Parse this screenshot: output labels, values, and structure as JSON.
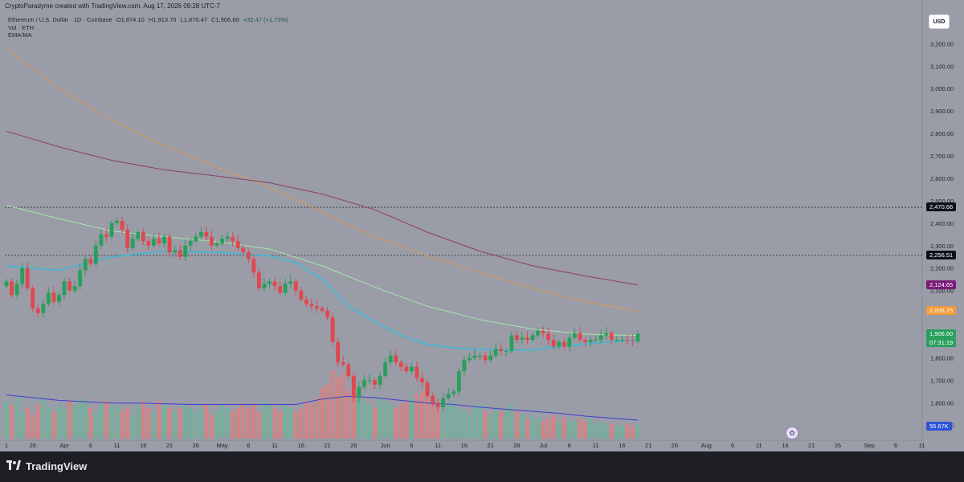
{
  "header": {
    "created_line": "CryptoParadyme created with TradingView.com, Aug 17, 2026 09:28 UTC-7",
    "symbol_line": "Ethereum / U.S. Dollar · 1D · Coinbase",
    "open": "O1,874.10",
    "high": "H1,913.70",
    "low": "L1,870.47",
    "close": "C1,906.60",
    "change": "+32.47 (+1.73%)",
    "vol_label": "Vol · ETH",
    "ema_label": "EMA/MA"
  },
  "currency_button": "USD",
  "colors": {
    "background": "#9a9ca7",
    "up": "#26a05a",
    "down": "#e0484e",
    "ema_short": "#3fb8d6",
    "ema_mid": "#a8e8b0",
    "ma_long": "#8c4060",
    "ma_orange": "#d89a5c",
    "volume_ma": "#3e3ed0"
  },
  "price_tags": [
    {
      "label": "2,470.66",
      "price": 2470.66,
      "bg": "#0e1017",
      "fg": "#ffffff",
      "dashed": true
    },
    {
      "label": "2,256.51",
      "price": 2256.51,
      "bg": "#0e1017",
      "fg": "#ffffff",
      "dashed": true
    },
    {
      "label": "2,124.65",
      "price": 2124.65,
      "bg": "#7a1b7a",
      "fg": "#ffffff",
      "dashed": false
    },
    {
      "label": "2,008.25",
      "price": 2008.25,
      "bg": "#f29b3c",
      "fg": "#ffffff",
      "dashed": false
    },
    {
      "label": "1,906.60",
      "price": 1906.6,
      "bg": "#2aa05c",
      "fg": "#ffffff",
      "dashed": false
    }
  ],
  "countdown": "07:31:19",
  "volume_tag": "55.67K",
  "footer": {
    "brand": "TradingView"
  },
  "chart_data": {
    "type": "candlestick",
    "y_axis": {
      "ticks": [
        "3,200.00",
        "3,100.00",
        "3,000.00",
        "2,900.00",
        "2,800.00",
        "2,700.00",
        "2,600.00",
        "2,500.00",
        "2,400.00",
        "2,300.00",
        "2,200.00",
        "2,100.00",
        "1,800.00",
        "1,700.00",
        "1,600.00",
        "1,500.00"
      ],
      "tick_values": [
        3200,
        3100,
        3000,
        2900,
        2800,
        2700,
        2600,
        2500,
        2400,
        2300,
        2200,
        2100,
        1800,
        1700,
        1600,
        1500
      ],
      "range": [
        1440,
        3280
      ]
    },
    "x_axis": {
      "ticks": [
        "1",
        "26",
        "Apr",
        "6",
        "11",
        "16",
        "21",
        "26",
        "May",
        "6",
        "11",
        "16",
        "21",
        "26",
        "Jun",
        "6",
        "11",
        "16",
        "21",
        "26",
        "Jul",
        "6",
        "11",
        "16",
        "21",
        "26",
        "Aug",
        "6",
        "11",
        "16",
        "21",
        "26",
        "Sep",
        "6",
        "11"
      ],
      "tick_days": [
        0,
        5,
        11,
        16,
        21,
        26,
        31,
        36,
        41,
        46,
        51,
        56,
        61,
        66,
        72,
        77,
        82,
        87,
        92,
        97,
        102,
        107,
        112,
        117,
        122,
        127,
        133,
        138,
        143,
        148,
        153,
        158,
        164,
        169,
        174
      ]
    },
    "key_levels": [
      2470.66,
      2256.51
    ],
    "close_series": {
      "start_day": 0,
      "closes": [
        2140,
        2080,
        2130,
        2200,
        2110,
        2020,
        2000,
        2040,
        2090,
        2050,
        2080,
        2140,
        2100,
        2120,
        2190,
        2240,
        2220,
        2300,
        2350,
        2340,
        2400,
        2410,
        2370,
        2290,
        2330,
        2360,
        2320,
        2300,
        2330,
        2310,
        2340,
        2270,
        2280,
        2250,
        2300,
        2320,
        2340,
        2360,
        2340,
        2300,
        2310,
        2330,
        2340,
        2320,
        2290,
        2270,
        2240,
        2180,
        2110,
        2130,
        2140,
        2120,
        2090,
        2130,
        2140,
        2100,
        2060,
        2040,
        2030,
        2020,
        2010,
        1980,
        1870,
        1780,
        1770,
        1720,
        1620,
        1670,
        1700,
        1700,
        1680,
        1720,
        1780,
        1810,
        1780,
        1760,
        1740,
        1760,
        1710,
        1690,
        1630,
        1600,
        1580,
        1620,
        1640,
        1650,
        1740,
        1790,
        1800,
        1810,
        1810,
        1790,
        1810,
        1840,
        1830,
        1830,
        1900,
        1880,
        1890,
        1880,
        1900,
        1920,
        1910,
        1880,
        1850,
        1870,
        1850,
        1890,
        1910,
        1880,
        1870,
        1880,
        1880,
        1900,
        1910,
        1880,
        1880,
        1880,
        1876,
        1874,
        1906.6
      ]
    },
    "volume": {
      "latest": "55.67K",
      "relative": [
        0.55,
        0.5,
        0.6,
        0.4,
        0.45,
        0.35,
        0.5,
        0.6,
        0.45,
        0.4,
        0.5,
        0.45,
        0.55,
        0.5,
        0.6,
        0.55,
        0.45,
        0.4,
        0.5,
        0.55,
        0.45,
        0.5,
        0.4,
        0.45,
        0.35,
        0.5,
        0.55,
        0.45,
        0.4,
        0.55,
        0.5,
        0.45,
        0.4,
        0.45,
        0.5,
        0.45,
        0.4,
        0.45,
        0.5,
        0.35,
        0.4,
        0.5,
        0.45,
        0.4,
        0.45,
        0.5,
        0.45,
        0.5,
        0.4,
        0.55,
        0.5,
        0.45,
        0.4,
        0.5,
        0.45,
        0.4,
        0.45,
        0.55,
        0.5,
        0.6,
        0.75,
        0.8,
        1.0,
        0.9,
        0.95,
        0.7,
        0.8,
        0.65,
        0.55,
        0.5,
        0.45,
        0.6,
        0.55,
        0.5,
        0.45,
        0.5,
        0.55,
        0.6,
        0.65,
        0.7,
        0.75,
        0.55,
        0.45,
        0.4,
        0.5,
        0.55,
        0.45,
        0.4,
        0.35,
        0.45,
        0.5,
        0.4,
        0.35,
        0.45,
        0.4,
        0.45,
        0.5,
        0.4,
        0.35,
        0.3,
        0.35,
        0.3,
        0.25,
        0.3,
        0.35,
        0.25,
        0.3,
        0.28,
        0.25,
        0.3,
        0.25,
        0.3,
        0.22,
        0.25,
        0.2,
        0.22,
        0.18,
        0.2,
        0.22,
        0.18,
        0.2
      ]
    },
    "indicators": {
      "ema_short": [
        [
          0,
          2210
        ],
        [
          10,
          2190
        ],
        [
          20,
          2250
        ],
        [
          30,
          2275
        ],
        [
          40,
          2270
        ],
        [
          50,
          2255
        ],
        [
          55,
          2225
        ],
        [
          60,
          2150
        ],
        [
          65,
          2030
        ],
        [
          70,
          1960
        ],
        [
          75,
          1900
        ],
        [
          80,
          1860
        ],
        [
          85,
          1845
        ],
        [
          90,
          1838
        ],
        [
          95,
          1835
        ],
        [
          100,
          1835
        ],
        [
          105,
          1850
        ],
        [
          110,
          1862
        ],
        [
          115,
          1872
        ],
        [
          120,
          1880
        ]
      ],
      "ema_mid": [
        [
          0,
          2480
        ],
        [
          10,
          2420
        ],
        [
          20,
          2365
        ],
        [
          30,
          2340
        ],
        [
          40,
          2318
        ],
        [
          50,
          2285
        ],
        [
          60,
          2210
        ],
        [
          70,
          2115
        ],
        [
          80,
          2030
        ],
        [
          90,
          1970
        ],
        [
          100,
          1928
        ],
        [
          110,
          1906
        ],
        [
          115,
          1902
        ],
        [
          120,
          1900
        ]
      ],
      "ma_long": [
        [
          0,
          2810
        ],
        [
          10,
          2740
        ],
        [
          20,
          2680
        ],
        [
          30,
          2638
        ],
        [
          40,
          2610
        ],
        [
          50,
          2580
        ],
        [
          60,
          2530
        ],
        [
          70,
          2460
        ],
        [
          80,
          2360
        ],
        [
          90,
          2275
        ],
        [
          100,
          2210
        ],
        [
          110,
          2165
        ],
        [
          120,
          2124.65
        ]
      ],
      "ma_orange": [
        [
          0,
          3180
        ],
        [
          10,
          3000
        ],
        [
          20,
          2860
        ],
        [
          30,
          2745
        ],
        [
          40,
          2650
        ],
        [
          50,
          2560
        ],
        [
          60,
          2450
        ],
        [
          70,
          2340
        ],
        [
          80,
          2255
        ],
        [
          90,
          2180
        ],
        [
          100,
          2110
        ],
        [
          110,
          2050
        ],
        [
          120,
          2008.25
        ]
      ],
      "volume_ma": [
        0.64,
        0.6,
        0.56,
        0.54,
        0.52,
        0.52,
        0.51,
        0.5,
        0.5,
        0.5,
        0.5,
        0.5,
        0.58,
        0.62,
        0.6,
        0.56,
        0.52,
        0.5,
        0.46,
        0.43,
        0.4,
        0.37,
        0.33,
        0.3,
        0.27
      ]
    }
  }
}
